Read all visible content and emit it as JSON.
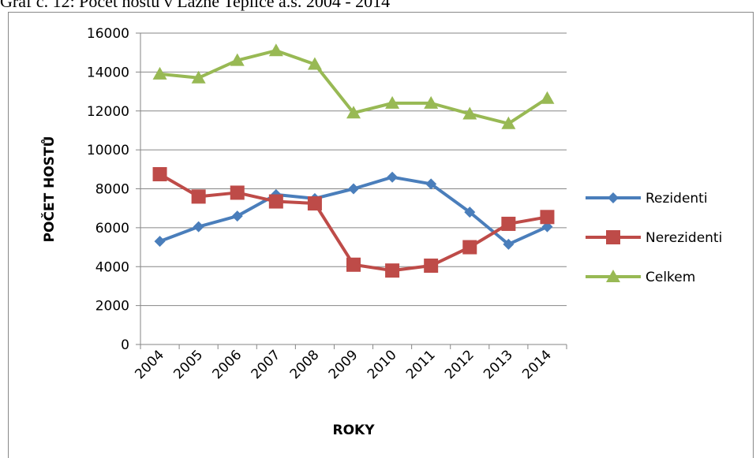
{
  "chart_data": {
    "type": "line",
    "title": "Graf č. 12: Počet hostů v Lázně Teplice a.s. 2004 - 2014",
    "x_label": "ROKY",
    "y_label": "POČET HOSTŮ",
    "categories": [
      "2004",
      "2005",
      "2006",
      "2007",
      "2008",
      "2009",
      "2010",
      "2011",
      "2012",
      "2013",
      "2014"
    ],
    "series": [
      {
        "name": "Rezidenti",
        "color": "#4a7ebb",
        "marker": "diamond",
        "values": [
          5300,
          6050,
          6600,
          7700,
          7500,
          8000,
          8600,
          8250,
          6800,
          5150,
          6050
        ]
      },
      {
        "name": "Nerezidenti",
        "color": "#be4b48",
        "marker": "square",
        "values": [
          8750,
          7600,
          7800,
          7350,
          7250,
          4100,
          3800,
          4050,
          5000,
          6200,
          6550
        ]
      },
      {
        "name": "Celkem",
        "color": "#98b954",
        "marker": "triangle",
        "values": [
          13900,
          13700,
          14600,
          15100,
          14400,
          11900,
          12400,
          12400,
          11850,
          11350,
          12650
        ]
      }
    ],
    "ylim": [
      0,
      16000
    ],
    "yticks": [
      0,
      2000,
      4000,
      6000,
      8000,
      10000,
      12000,
      14000,
      16000
    ],
    "grid": true,
    "legend": "right"
  }
}
